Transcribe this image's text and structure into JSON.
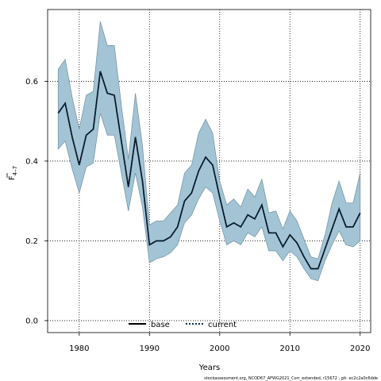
{
  "chart_data": {
    "type": "line",
    "xlabel": "Years",
    "ylabel_main": "F",
    "ylabel_sub": "4–7",
    "xlim": [
      1975.5,
      2021.5
    ],
    "ylim": [
      -0.03,
      0.78
    ],
    "x_ticks": [
      1980,
      1990,
      2000,
      2010,
      2020
    ],
    "y_ticks": [
      0.0,
      0.2,
      0.4,
      0.6
    ],
    "y_tick_labels": [
      "0.0",
      "0.2",
      "0.4",
      "0.6"
    ],
    "grid": true,
    "legend_placement": "bottom-center",
    "colors": {
      "band": "#a3c4d5",
      "band_edge": "#6f8f9f",
      "current": "#0b2f4f",
      "base": "#000000",
      "grid": "#000000"
    },
    "x": [
      1977,
      1978,
      1979,
      1980,
      1981,
      1982,
      1983,
      1984,
      1985,
      1986,
      1987,
      1988,
      1989,
      1990,
      1991,
      1992,
      1993,
      1994,
      1995,
      1996,
      1997,
      1998,
      1999,
      2000,
      2001,
      2002,
      2003,
      2004,
      2005,
      2006,
      2007,
      2008,
      2009,
      2010,
      2011,
      2012,
      2013,
      2014,
      2015,
      2016,
      2017,
      2018,
      2019,
      2020
    ],
    "series": [
      {
        "name": "current",
        "values": [
          0.52,
          0.545,
          0.46,
          0.39,
          0.465,
          0.48,
          0.625,
          0.57,
          0.565,
          0.45,
          0.335,
          0.46,
          0.35,
          0.19,
          0.2,
          0.2,
          0.21,
          0.235,
          0.3,
          0.32,
          0.375,
          0.41,
          0.39,
          0.31,
          0.235,
          0.245,
          0.235,
          0.265,
          0.255,
          0.29,
          0.22,
          0.22,
          0.185,
          0.215,
          0.195,
          0.16,
          0.13,
          0.13,
          0.18,
          0.23,
          0.28,
          0.235,
          0.235,
          0.27
        ]
      },
      {
        "name": "base",
        "values": [
          0.52,
          0.545,
          0.46,
          0.39,
          0.465,
          0.48,
          0.625,
          0.57,
          0.565,
          0.45,
          0.335,
          0.46,
          0.35,
          0.19,
          0.2,
          0.2,
          0.21,
          0.235,
          0.3,
          0.32,
          0.375,
          0.41,
          0.39,
          0.31,
          0.235,
          0.245,
          0.235,
          0.265,
          0.255,
          0.29,
          0.22,
          0.22,
          0.185,
          0.215,
          0.195,
          0.16,
          0.13,
          0.13,
          0.18,
          0.23,
          0.28,
          0.235,
          0.235,
          0.27
        ]
      }
    ],
    "band_upper": [
      0.63,
      0.655,
      0.56,
      0.48,
      0.565,
      0.575,
      0.75,
      0.69,
      0.69,
      0.54,
      0.405,
      0.57,
      0.44,
      0.24,
      0.25,
      0.25,
      0.27,
      0.29,
      0.37,
      0.39,
      0.47,
      0.505,
      0.47,
      0.35,
      0.29,
      0.305,
      0.285,
      0.33,
      0.31,
      0.355,
      0.27,
      0.275,
      0.23,
      0.275,
      0.25,
      0.205,
      0.16,
      0.155,
      0.215,
      0.295,
      0.35,
      0.295,
      0.295,
      0.37
    ],
    "band_lower": [
      0.43,
      0.45,
      0.38,
      0.32,
      0.385,
      0.395,
      0.52,
      0.465,
      0.465,
      0.37,
      0.275,
      0.37,
      0.285,
      0.145,
      0.155,
      0.16,
      0.17,
      0.19,
      0.245,
      0.265,
      0.305,
      0.335,
      0.32,
      0.25,
      0.19,
      0.2,
      0.19,
      0.22,
      0.21,
      0.235,
      0.175,
      0.175,
      0.15,
      0.175,
      0.16,
      0.13,
      0.105,
      0.1,
      0.15,
      0.19,
      0.225,
      0.19,
      0.185,
      0.2
    ]
  },
  "footnote": "stockassessment.org, NCOD67_AFWG2021_Corr_extended, r15672 , git: ec2c2a0c6dde"
}
